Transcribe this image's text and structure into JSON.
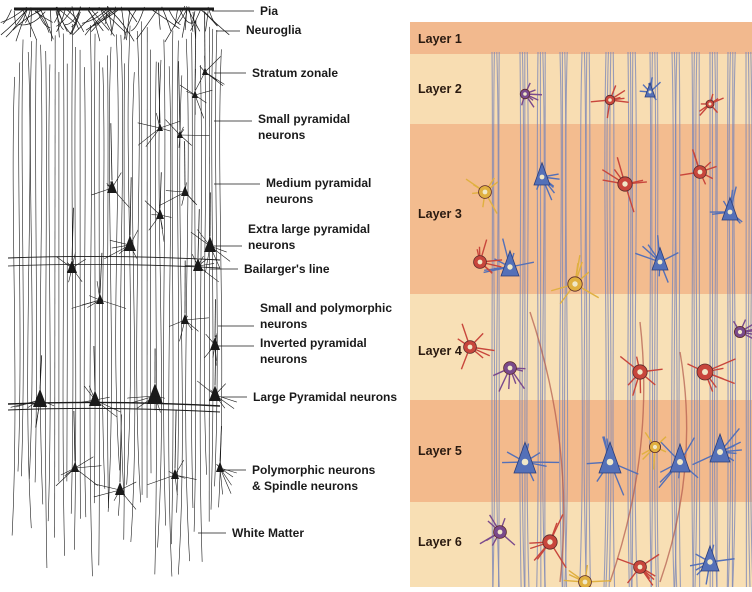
{
  "left_labels": [
    {
      "id": "pia",
      "lines": [
        "Pia"
      ]
    },
    {
      "id": "neuroglia",
      "lines": [
        "Neuroglia"
      ]
    },
    {
      "id": "stratum-zonale",
      "lines": [
        "Stratum zonale"
      ]
    },
    {
      "id": "small-pyramidal",
      "lines": [
        "Small pyramidal",
        "neurons"
      ]
    },
    {
      "id": "medium-pyramidal",
      "lines": [
        "Medium pyramidal",
        "neurons"
      ]
    },
    {
      "id": "extra-large-pyramidal",
      "lines": [
        "Extra large pyramidal",
        "neurons"
      ]
    },
    {
      "id": "bailarger-line",
      "lines": [
        "Bailarger's line"
      ]
    },
    {
      "id": "small-polymorphic",
      "lines": [
        "Small and polymorphic",
        "neurons"
      ]
    },
    {
      "id": "inverted-pyramidal",
      "lines": [
        "Inverted pyramidal",
        "neurons"
      ]
    },
    {
      "id": "large-pyramidal",
      "lines": [
        "Large Pyramidal neurons"
      ]
    },
    {
      "id": "polymorphic-spindle",
      "lines": [
        "Polymorphic neurons",
        "& Spindle neurons"
      ]
    },
    {
      "id": "white-matter",
      "lines": [
        "White Matter"
      ]
    }
  ],
  "layers": [
    {
      "label": "Layer 1",
      "color": "#f2b98e"
    },
    {
      "label": "Layer 2",
      "color": "#f8ddb2"
    },
    {
      "label": "Layer 3",
      "color": "#f3bc8f"
    },
    {
      "label": "Layer 4",
      "color": "#f8e0b6"
    },
    {
      "label": "Layer 5",
      "color": "#f3ba8c"
    },
    {
      "label": "Layer 6",
      "color": "#f8dfb4"
    }
  ],
  "colors": {
    "ink": "#1a1a1a",
    "fiber": "#7a86b8",
    "neuron_blue": "#5470b8",
    "neuron_red": "#c8463c",
    "neuron_purple": "#7a4a8c",
    "neuron_yellow": "#e0b040"
  }
}
